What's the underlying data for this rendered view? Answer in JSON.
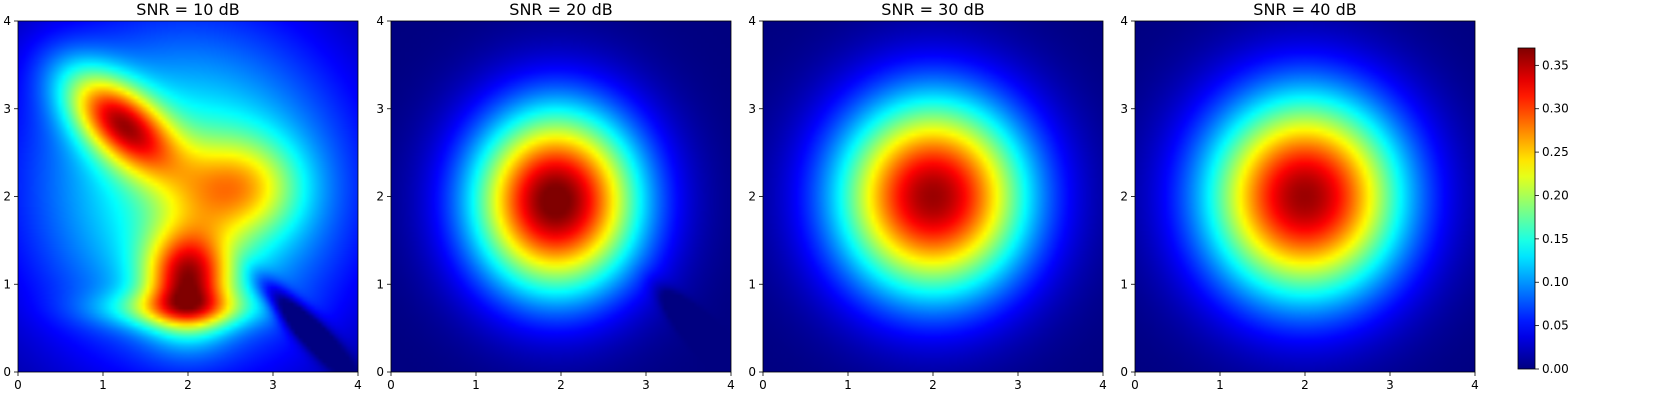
{
  "chart_data": {
    "type": "heatmap",
    "colormap": "jet",
    "colorbar": {
      "range": [
        0.0,
        0.37
      ],
      "tick_values": [
        0.0,
        0.05,
        0.1,
        0.15,
        0.2,
        0.25,
        0.3,
        0.35
      ],
      "tick_labels": [
        "0.00",
        "0.05",
        "0.10",
        "0.15",
        "0.20",
        "0.25",
        "0.30",
        "0.35"
      ]
    },
    "panels": [
      {
        "title": "SNR = 10 dB",
        "xlim": [
          0,
          4
        ],
        "ylim": [
          0,
          4
        ],
        "x_ticks": [
          "0",
          "1",
          "2",
          "3",
          "4"
        ],
        "y_ticks": [
          "0",
          "1",
          "2",
          "3",
          "4"
        ],
        "base": {
          "peak": 0.16,
          "center": [
            2.0,
            2.1
          ],
          "spread": [
            2.0,
            2.0
          ]
        },
        "features": [
          {
            "kind": "blob",
            "center": [
              1.2,
              2.85
            ],
            "amplitude": 0.24,
            "sigma": [
              0.55,
              0.28
            ],
            "angle_deg": -40
          },
          {
            "kind": "blob",
            "center": [
              2.0,
              1.05
            ],
            "amplitude": 0.24,
            "sigma": [
              0.35,
              0.4
            ],
            "angle_deg": 0
          },
          {
            "kind": "blob",
            "center": [
              2.6,
              2.1
            ],
            "amplitude": 0.13,
            "sigma": [
              0.5,
              0.4
            ],
            "angle_deg": 0
          },
          {
            "kind": "blob",
            "center": [
              1.9,
              0.72
            ],
            "amplitude": 0.1,
            "sigma": [
              0.65,
              0.15
            ],
            "angle_deg": 0
          },
          {
            "kind": "blob",
            "center": [
              3.35,
              0.55
            ],
            "amplitude": -0.13,
            "sigma": [
              0.45,
              0.1
            ],
            "angle_deg": -45
          }
        ]
      },
      {
        "title": "SNR = 20 dB",
        "xlim": [
          0,
          4
        ],
        "ylim": [
          0,
          4
        ],
        "x_ticks": [
          "0",
          "1",
          "2",
          "3",
          "4"
        ],
        "y_ticks": [
          "0",
          "1",
          "2",
          "3",
          "4"
        ],
        "base": {
          "peak": 0.36,
          "center": [
            1.95,
            1.95
          ],
          "spread": [
            1.0,
            1.05
          ]
        },
        "features": [
          {
            "kind": "blob",
            "center": [
              1.85,
              1.95
            ],
            "amplitude": 0.02,
            "sigma": [
              0.45,
              0.55
            ],
            "angle_deg": 0
          },
          {
            "kind": "blob",
            "center": [
              3.5,
              0.6
            ],
            "amplitude": -0.07,
            "sigma": [
              0.3,
              0.08
            ],
            "angle_deg": -45
          }
        ]
      },
      {
        "title": "SNR = 30 dB",
        "xlim": [
          0,
          4
        ],
        "ylim": [
          0,
          4
        ],
        "x_ticks": [
          "0",
          "1",
          "2",
          "3",
          "4"
        ],
        "y_ticks": [
          "0",
          "1",
          "2",
          "3",
          "4"
        ],
        "base": {
          "peak": 0.36,
          "center": [
            2.0,
            2.0
          ],
          "spread": [
            1.12,
            1.12
          ]
        },
        "features": []
      },
      {
        "title": "SNR = 40 dB",
        "xlim": [
          0,
          4
        ],
        "ylim": [
          0,
          4
        ],
        "x_ticks": [
          "0",
          "1",
          "2",
          "3",
          "4"
        ],
        "y_ticks": [
          "0",
          "1",
          "2",
          "3",
          "4"
        ],
        "base": {
          "peak": 0.36,
          "center": [
            2.0,
            2.0
          ],
          "spread": [
            1.15,
            1.15
          ]
        },
        "features": []
      }
    ]
  }
}
